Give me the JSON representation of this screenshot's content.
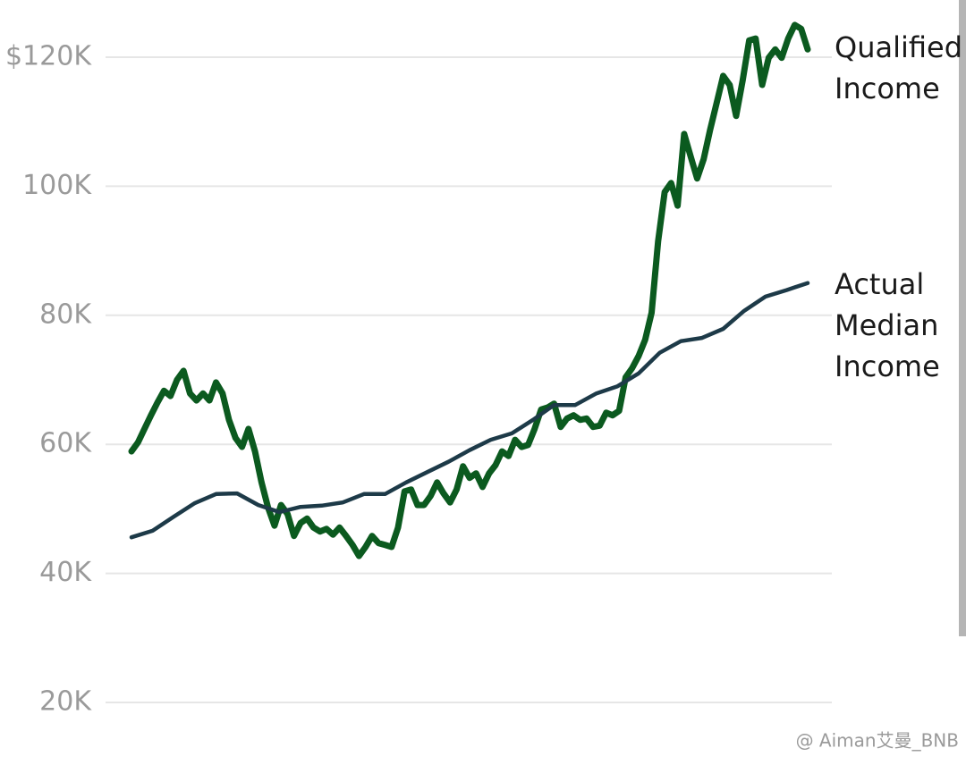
{
  "chart_data": {
    "type": "line",
    "ylim": [
      16000,
      128000
    ],
    "yticks": [
      {
        "value": 20000,
        "label": "20K"
      },
      {
        "value": 40000,
        "label": "40K"
      },
      {
        "value": 60000,
        "label": "60K"
      },
      {
        "value": 80000,
        "label": "80K"
      },
      {
        "value": 100000,
        "label": "100K"
      },
      {
        "value": 120000,
        "label": "$120K"
      }
    ],
    "grid": true,
    "series": [
      {
        "name": "Qualified Income",
        "color": "#0b5a1f",
        "values": [
          58900,
          60300,
          62400,
          64500,
          66500,
          68300,
          67500,
          70000,
          71400,
          67900,
          66800,
          67900,
          66800,
          69600,
          67900,
          63800,
          61000,
          59600,
          62400,
          58900,
          54100,
          50200,
          47400,
          50600,
          49200,
          45800,
          47800,
          48500,
          47100,
          46500,
          46900,
          46000,
          47100,
          45800,
          44400,
          42700,
          44100,
          45800,
          44700,
          44400,
          44100,
          47100,
          52700,
          53000,
          50600,
          50600,
          52000,
          54100,
          52400,
          51000,
          53000,
          56600,
          54800,
          55500,
          53400,
          55500,
          56800,
          58900,
          58200,
          60700,
          59600,
          59900,
          62400,
          65400,
          65700,
          66300,
          62700,
          64000,
          64500,
          63800,
          64000,
          62700,
          62900,
          64900,
          64500,
          65200,
          70400,
          71800,
          73700,
          76200,
          80400,
          91500,
          99100,
          100500,
          97000,
          108100,
          104600,
          101200,
          104200,
          108800,
          112900,
          117100,
          115700,
          110900,
          116400,
          122600,
          122900,
          115700,
          119900,
          121200,
          119900,
          122900,
          125000,
          124400,
          121200
        ]
      },
      {
        "name": "Actual Median Income",
        "color": "#1d3a48",
        "values": [
          45600,
          46600,
          48800,
          50900,
          52300,
          52400,
          50600,
          49500,
          50300,
          50500,
          51000,
          52300,
          52300,
          54100,
          55700,
          57300,
          59100,
          60700,
          61700,
          63800,
          66100,
          66100,
          67900,
          69000,
          71000,
          74200,
          76000,
          76500,
          77900,
          80700,
          82900,
          83900,
          85000
        ]
      }
    ]
  },
  "watermark": "@ Aiman艾曼_BNB"
}
